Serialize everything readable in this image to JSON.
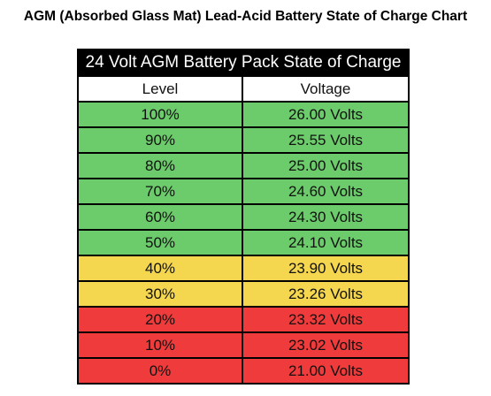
{
  "page_title": "AGM (Absorbed Glass Mat) Lead-Acid Battery State of Charge Chart",
  "colors": {
    "header_bg": "#000000",
    "green": "#6ccb6a",
    "yellow": "#f5d64f",
    "red": "#ef3b3b"
  },
  "chart_data": {
    "type": "table",
    "title": "24 Volt AGM Battery Pack State of Charge",
    "columns": [
      "Level",
      "Voltage"
    ],
    "rows": [
      {
        "level": "100%",
        "voltage": "26.00 Volts",
        "band": "green"
      },
      {
        "level": "90%",
        "voltage": "25.55 Volts",
        "band": "green"
      },
      {
        "level": "80%",
        "voltage": "25.00 Volts",
        "band": "green"
      },
      {
        "level": "70%",
        "voltage": "24.60 Volts",
        "band": "green"
      },
      {
        "level": "60%",
        "voltage": "24.30 Volts",
        "band": "green"
      },
      {
        "level": "50%",
        "voltage": "24.10 Volts",
        "band": "green"
      },
      {
        "level": "40%",
        "voltage": "23.90 Volts",
        "band": "yellow"
      },
      {
        "level": "30%",
        "voltage": "23.26 Volts",
        "band": "yellow"
      },
      {
        "level": "20%",
        "voltage": "23.32 Volts",
        "band": "red"
      },
      {
        "level": "10%",
        "voltage": "23.02 Volts",
        "band": "red"
      },
      {
        "level": "0%",
        "voltage": "21.00 Volts",
        "band": "red"
      }
    ]
  }
}
